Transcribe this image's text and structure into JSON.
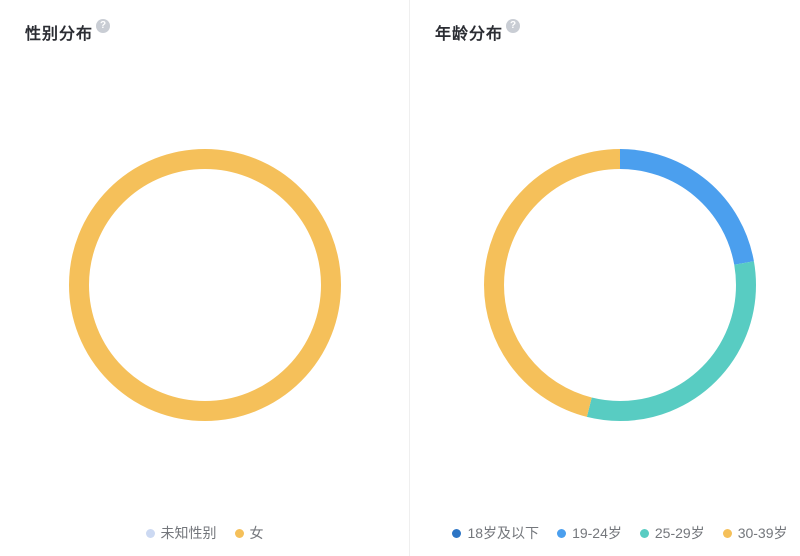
{
  "page": {
    "background": "#ffffff",
    "divider_color": "#efefef",
    "title_color": "#2b2d33",
    "legend_text_color": "#74777c",
    "help_icon_glyph": "?"
  },
  "panels": [
    {
      "title": "性别分布"
    },
    {
      "title": "年龄分布"
    }
  ],
  "chart_data": [
    {
      "type": "pie",
      "donut": true,
      "title": "性别分布",
      "labels": [
        "未知性别",
        "女"
      ],
      "values": [
        0,
        100
      ],
      "unit": "percent",
      "colors": [
        "#ccd9f2",
        "#f5c05a"
      ],
      "legend_position": "bottom",
      "start_angle_deg": 0,
      "notes": "ring fully yellow; 未知性别 segment not visible (≈0%)"
    },
    {
      "type": "pie",
      "donut": true,
      "title": "年龄分布",
      "labels": [
        "18岁及以下",
        "19-24岁",
        "25-29岁",
        "30-39岁"
      ],
      "values": [
        0,
        22.2,
        31.7,
        46.1
      ],
      "unit": "percent",
      "colors": [
        "#2d75c5",
        "#4b9fee",
        "#58ccc2",
        "#f5c05a"
      ],
      "legend_position": "bottom",
      "start_angle_deg": 0,
      "notes": "clockwise from top: blue ≈0°–80°, teal ≈80°–194°, yellow ≈194°–360°; 18岁及以下 not visible (≈0%)"
    }
  ]
}
